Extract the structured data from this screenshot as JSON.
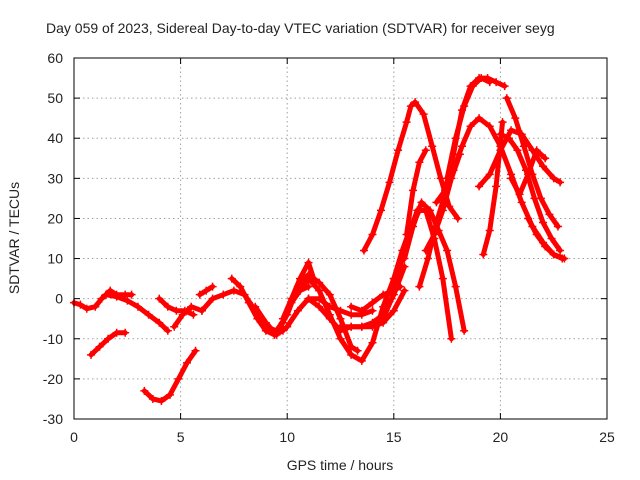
{
  "chart_data": {
    "type": "scatter",
    "title": "Day 059 of 2023, Sidereal Day-to-day VTEC variation (SDTVAR) for receiver seyg",
    "xlabel": "GPS time / hours",
    "ylabel": "SDTVAR / TECUs",
    "xlim": [
      0,
      25
    ],
    "ylim": [
      -30,
      60
    ],
    "xticks": [
      "0",
      "5",
      "10",
      "15",
      "20",
      "25"
    ],
    "yticks": [
      "-30",
      "-20",
      "-10",
      "0",
      "10",
      "20",
      "30",
      "40",
      "50",
      "60"
    ],
    "grid": true,
    "marker": "+",
    "color": "#ff0000",
    "series": [
      {
        "name": "s1",
        "x": [
          0.0,
          0.3,
          0.6,
          1.0,
          1.3,
          1.7,
          2.0,
          2.4,
          2.7
        ],
        "y": [
          -1,
          -1.5,
          -2.5,
          -2,
          0,
          2,
          1,
          1,
          1
        ]
      },
      {
        "name": "s2",
        "x": [
          0.8,
          1.2,
          1.6,
          2.0,
          2.4
        ],
        "y": [
          -14,
          -12,
          -10,
          -8.5,
          -8.5
        ]
      },
      {
        "name": "s3",
        "x": [
          1.5,
          2.0,
          2.5,
          3.0,
          3.5,
          4.0,
          4.4
        ],
        "y": [
          1,
          0.5,
          -0.5,
          -2,
          -4,
          -6,
          -8
        ]
      },
      {
        "name": "s4",
        "x": [
          3.3,
          3.7,
          4.1,
          4.5,
          4.9,
          5.3,
          5.7
        ],
        "y": [
          -23,
          -25,
          -25.5,
          -24,
          -20,
          -16,
          -13
        ]
      },
      {
        "name": "s5",
        "x": [
          4.0,
          4.4,
          4.8,
          5.2,
          5.6
        ],
        "y": [
          0,
          -2,
          -3,
          -3,
          -4
        ]
      },
      {
        "name": "s6",
        "x": [
          4.7,
          5.1,
          5.5,
          6.0
        ],
        "y": [
          -7,
          -4,
          -2,
          -3
        ]
      },
      {
        "name": "s7",
        "x": [
          5.9,
          6.2,
          6.5
        ],
        "y": [
          1,
          2,
          3
        ]
      },
      {
        "name": "s8",
        "x": [
          6.0,
          6.5,
          7.0,
          7.5,
          8.0,
          8.5,
          9.0,
          9.4,
          9.8
        ],
        "y": [
          -3,
          0,
          1,
          2,
          1,
          -3,
          -7,
          -9,
          -8
        ]
      },
      {
        "name": "s9",
        "x": [
          7.4,
          7.8,
          8.2,
          8.6,
          9.0,
          9.4,
          9.8,
          10.2,
          10.6,
          11.0
        ],
        "y": [
          5,
          3,
          -1,
          -5,
          -8,
          -9,
          -6,
          -1,
          2,
          3
        ]
      },
      {
        "name": "s10",
        "x": [
          8.5,
          9.0,
          9.5,
          10.0,
          10.5,
          11.0,
          11.5,
          12.0,
          12.5,
          13.0,
          13.5,
          14.0
        ],
        "y": [
          -2,
          -6,
          -9,
          -7,
          -3,
          0,
          0,
          -2,
          -3,
          -4,
          -4,
          -3
        ]
      },
      {
        "name": "s11",
        "x": [
          9.0,
          9.5,
          10.0,
          10.5,
          11.0,
          11.5,
          12.0,
          12.5,
          13.0,
          13.3
        ],
        "y": [
          -7,
          -8,
          -4,
          3,
          6,
          4,
          1,
          -5,
          -12,
          -13
        ]
      },
      {
        "name": "s12",
        "x": [
          9.8,
          10.2,
          10.6,
          11.0,
          11.3
        ],
        "y": [
          -5,
          0,
          5,
          9,
          4
        ]
      },
      {
        "name": "s13",
        "x": [
          10.6,
          11.0,
          11.5,
          12.0,
          12.5,
          13.0,
          13.5,
          14.0,
          14.5,
          15.0
        ],
        "y": [
          2,
          5,
          2,
          -4,
          -10,
          -14,
          -15.5,
          -11,
          -2,
          5
        ]
      },
      {
        "name": "s14",
        "x": [
          11.0,
          11.5,
          12.0,
          12.5,
          13.0,
          13.5,
          14.0,
          14.5,
          15.0,
          15.5
        ],
        "y": [
          0,
          -2,
          -5,
          -8,
          -7,
          -7,
          -7,
          -6,
          -3,
          2
        ]
      },
      {
        "name": "s15",
        "x": [
          12.5,
          13.0,
          13.5,
          14.0,
          14.5,
          15.0,
          15.5
        ],
        "y": [
          -7,
          -7,
          -7,
          -6,
          -4,
          1,
          8
        ]
      },
      {
        "name": "s16",
        "x": [
          13.0,
          13.5,
          14.0,
          14.5,
          15.0,
          15.3
        ],
        "y": [
          -2,
          -3,
          -1,
          1,
          2,
          3
        ]
      },
      {
        "name": "s17",
        "x": [
          13.6,
          14.0,
          14.4,
          14.8,
          15.2,
          15.6,
          15.8,
          16.0,
          16.4,
          16.8,
          17.2,
          17.6,
          18.0
        ],
        "y": [
          12,
          16,
          22,
          29,
          37,
          44,
          48,
          49,
          46,
          38,
          30,
          23,
          20
        ]
      },
      {
        "name": "s18",
        "x": [
          14.5,
          14.9,
          15.3,
          15.7,
          16.1,
          16.5,
          16.9,
          17.3,
          17.7
        ],
        "y": [
          -5,
          0,
          8,
          16,
          22,
          22,
          15,
          5,
          -10
        ]
      },
      {
        "name": "s19",
        "x": [
          15.0,
          15.4,
          15.8,
          16.2,
          16.6
        ],
        "y": [
          5,
          12,
          18,
          22,
          22
        ]
      },
      {
        "name": "s20",
        "x": [
          15.5,
          15.9,
          16.3,
          16.7,
          17.1,
          17.5,
          17.9,
          18.3
        ],
        "y": [
          10,
          18,
          24,
          22,
          17,
          12,
          3,
          -8
        ]
      },
      {
        "name": "s21",
        "x": [
          15.6,
          15.9,
          16.2,
          16.5
        ],
        "y": [
          16,
          27,
          34,
          37
        ]
      },
      {
        "name": "s22",
        "x": [
          16.2,
          16.6,
          17.0,
          17.4,
          17.8,
          18.2,
          18.6,
          19.0,
          19.5,
          20.0,
          20.5,
          21.0,
          21.5,
          22.0,
          22.5,
          23.0
        ],
        "y": [
          3,
          10,
          19,
          26,
          32,
          38,
          43,
          45,
          43,
          38,
          31,
          24,
          18,
          14,
          11,
          10
        ]
      },
      {
        "name": "s23",
        "x": [
          16.5,
          16.9,
          17.3,
          17.7,
          18.1
        ],
        "y": [
          12,
          16,
          22,
          30,
          36
        ]
      },
      {
        "name": "s24",
        "x": [
          17.0,
          17.4,
          17.8,
          18.2,
          18.6,
          19.0,
          19.4,
          19.8,
          20.2
        ],
        "y": [
          24,
          27,
          36,
          47,
          53,
          55,
          55,
          54,
          53
        ]
      },
      {
        "name": "s25",
        "x": [
          17.5,
          17.9,
          18.3,
          18.7,
          19.1,
          19.5
        ],
        "y": [
          30,
          40,
          48,
          53,
          55,
          54
        ]
      },
      {
        "name": "s26",
        "x": [
          19.0,
          19.5,
          20.0,
          20.5,
          21.0,
          21.5,
          22.0,
          22.5,
          22.8
        ],
        "y": [
          28,
          31,
          37,
          42,
          41,
          37,
          33,
          30,
          29
        ]
      },
      {
        "name": "s27",
        "x": [
          19.2,
          19.5,
          19.8,
          20.1
        ],
        "y": [
          11,
          17,
          28,
          44
        ]
      },
      {
        "name": "s28",
        "x": [
          20.0,
          20.4,
          20.8,
          21.2,
          21.6,
          22.0,
          22.4,
          22.8
        ],
        "y": [
          41,
          40,
          37,
          32,
          25,
          19,
          15,
          12
        ]
      },
      {
        "name": "s29",
        "x": [
          20.3,
          20.7,
          21.1,
          21.5,
          21.9,
          22.3,
          22.7
        ],
        "y": [
          50,
          45,
          38,
          31,
          25,
          21,
          18
        ]
      },
      {
        "name": "s30",
        "x": [
          20.5,
          20.9,
          21.3,
          21.7,
          22.1
        ],
        "y": [
          30,
          26,
          31,
          37,
          35
        ]
      },
      {
        "name": "s31",
        "x": [
          21.3,
          21.7,
          22.1,
          22.5,
          22.9
        ],
        "y": [
          20,
          16,
          13,
          11,
          10
        ]
      }
    ]
  }
}
